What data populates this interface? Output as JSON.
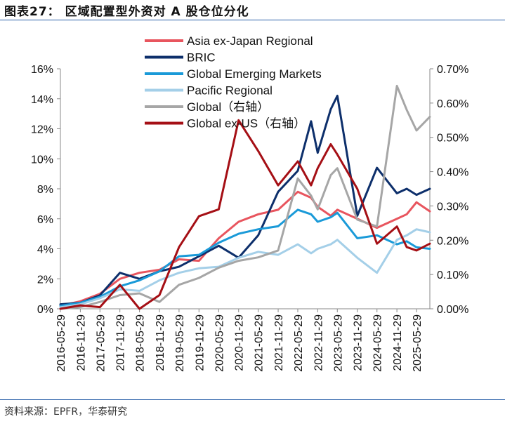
{
  "figure": {
    "title": "图表27：  区域配置型外资对 A 股仓位分化",
    "source": "资料来源：EPFR，华泰研究"
  },
  "chart_data": {
    "type": "line",
    "title": "图表27：  区域配置型外资对 A 股仓位分化",
    "xlabel": "",
    "ylabel": "",
    "ylim": [
      0,
      16
    ],
    "y2lim": [
      0,
      0.7
    ],
    "yticks": [
      "0%",
      "2%",
      "4%",
      "6%",
      "8%",
      "10%",
      "12%",
      "14%",
      "16%"
    ],
    "y2ticks": [
      "0.00%",
      "0.10%",
      "0.20%",
      "0.30%",
      "0.40%",
      "0.50%",
      "0.60%",
      "0.70%"
    ],
    "xticks": [
      "2016-05-29",
      "2016-11-29",
      "2017-05-29",
      "2017-11-29",
      "2018-05-29",
      "2018-11-29",
      "2019-05-29",
      "2019-11-29",
      "2020-05-29",
      "2020-11-29",
      "2021-05-29",
      "2021-11-29",
      "2022-05-29",
      "2022-11-29",
      "2023-05-29",
      "2023-11-29",
      "2024-05-29",
      "2024-11-29",
      "2025-05-29"
    ],
    "legend_position": "top-center",
    "grid": false,
    "series": [
      {
        "name": "Asia ex-Japan Regional",
        "axis": "left",
        "color": "#e8555e",
        "x": [
          "2016-05-29",
          "2016-11-29",
          "2017-05-29",
          "2017-11-29",
          "2018-05-29",
          "2018-11-29",
          "2019-05-29",
          "2019-11-29",
          "2020-05-29",
          "2020-11-29",
          "2021-05-29",
          "2021-11-29",
          "2022-05-29",
          "2022-09-29",
          "2022-11-29",
          "2023-03-29",
          "2023-05-29",
          "2023-11-29",
          "2024-05-29",
          "2024-11-29",
          "2025-02-28",
          "2025-05-29",
          "2025-09-29"
        ],
        "values": [
          0.2,
          0.5,
          1.0,
          2.0,
          2.4,
          2.6,
          3.3,
          3.2,
          4.7,
          5.8,
          6.3,
          6.6,
          7.8,
          7.4,
          6.8,
          6.2,
          6.6,
          6.0,
          5.4,
          6.0,
          6.3,
          7.1,
          6.5
        ]
      },
      {
        "name": "BRIC",
        "axis": "left",
        "color": "#0d2f6b",
        "x": [
          "2016-05-29",
          "2016-11-29",
          "2017-05-29",
          "2017-11-29",
          "2018-05-29",
          "2018-11-29",
          "2019-05-29",
          "2019-11-29",
          "2020-05-29",
          "2020-11-29",
          "2021-05-29",
          "2021-11-29",
          "2022-05-29",
          "2022-09-29",
          "2022-11-29",
          "2023-03-29",
          "2023-05-29",
          "2023-11-29",
          "2024-05-29",
          "2024-11-29",
          "2025-02-28",
          "2025-05-29",
          "2025-09-29"
        ],
        "values": [
          0.3,
          0.4,
          0.9,
          2.4,
          2.0,
          2.5,
          2.8,
          3.5,
          4.2,
          3.4,
          4.9,
          7.8,
          9.2,
          12.5,
          10.4,
          13.3,
          14.2,
          6.2,
          9.4,
          7.7,
          8.0,
          7.6,
          8.0
        ]
      },
      {
        "name": "Global Emerging Markets",
        "axis": "left",
        "color": "#1a9ad8",
        "x": [
          "2016-05-29",
          "2016-11-29",
          "2017-05-29",
          "2017-11-29",
          "2018-05-29",
          "2018-11-29",
          "2019-05-29",
          "2019-11-29",
          "2020-05-29",
          "2020-11-29",
          "2021-05-29",
          "2021-11-29",
          "2022-05-29",
          "2022-09-29",
          "2022-11-29",
          "2023-03-29",
          "2023-05-29",
          "2023-11-29",
          "2024-05-29",
          "2024-11-29",
          "2025-02-28",
          "2025-05-29",
          "2025-09-29"
        ],
        "values": [
          0.2,
          0.4,
          0.8,
          1.5,
          1.9,
          2.5,
          3.5,
          3.6,
          4.4,
          5.0,
          5.3,
          5.5,
          6.6,
          6.3,
          5.8,
          6.1,
          6.4,
          4.7,
          4.9,
          4.3,
          4.5,
          4.1,
          4.0
        ]
      },
      {
        "name": "Pacific Regional",
        "axis": "left",
        "color": "#a4cfe8",
        "x": [
          "2016-05-29",
          "2016-11-29",
          "2017-05-29",
          "2017-11-29",
          "2018-05-29",
          "2018-11-29",
          "2019-05-29",
          "2019-11-29",
          "2020-05-29",
          "2020-11-29",
          "2021-05-29",
          "2021-11-29",
          "2022-05-29",
          "2022-09-29",
          "2022-11-29",
          "2023-03-29",
          "2023-05-29",
          "2023-11-29",
          "2024-05-29",
          "2024-11-29",
          "2025-02-28",
          "2025-05-29",
          "2025-09-29"
        ],
        "values": [
          0.1,
          0.3,
          0.7,
          1.3,
          1.2,
          1.9,
          2.4,
          2.7,
          2.8,
          3.4,
          3.8,
          3.6,
          4.3,
          3.7,
          4.0,
          4.3,
          4.6,
          3.4,
          2.4,
          4.6,
          4.9,
          5.3,
          5.1
        ]
      },
      {
        "name": "Global（右轴）",
        "axis": "right",
        "color": "#a6a6a6",
        "x": [
          "2016-05-29",
          "2016-11-29",
          "2017-05-29",
          "2017-11-29",
          "2018-05-29",
          "2018-11-29",
          "2019-05-29",
          "2019-11-29",
          "2020-05-29",
          "2020-11-29",
          "2021-05-29",
          "2021-11-29",
          "2022-05-29",
          "2022-09-29",
          "2022-11-29",
          "2023-03-29",
          "2023-05-29",
          "2023-11-29",
          "2024-05-29",
          "2024-11-29",
          "2025-02-28",
          "2025-05-29",
          "2025-09-29"
        ],
        "values": [
          0.0,
          0.005,
          0.02,
          0.04,
          0.045,
          0.02,
          0.07,
          0.09,
          0.12,
          0.14,
          0.15,
          0.17,
          0.38,
          0.33,
          0.29,
          0.39,
          0.41,
          0.26,
          0.24,
          0.65,
          0.58,
          0.52,
          0.56
        ]
      },
      {
        "name": "Global ex-US（右轴）",
        "axis": "right",
        "color": "#a50f15",
        "x": [
          "2016-05-29",
          "2016-11-29",
          "2017-05-29",
          "2017-11-29",
          "2018-05-29",
          "2018-11-29",
          "2019-05-29",
          "2019-11-29",
          "2020-05-29",
          "2020-11-29",
          "2021-05-29",
          "2021-11-29",
          "2022-05-29",
          "2022-09-29",
          "2022-11-29",
          "2023-03-29",
          "2023-05-29",
          "2023-11-29",
          "2024-05-29",
          "2024-11-29",
          "2025-02-28",
          "2025-05-29",
          "2025-09-29"
        ],
        "values": [
          0.0,
          0.01,
          0.005,
          0.07,
          0.0,
          0.04,
          0.18,
          0.27,
          0.29,
          0.55,
          0.46,
          0.36,
          0.43,
          0.36,
          0.41,
          0.48,
          0.45,
          0.35,
          0.19,
          0.24,
          0.18,
          0.17,
          0.19
        ]
      }
    ]
  }
}
